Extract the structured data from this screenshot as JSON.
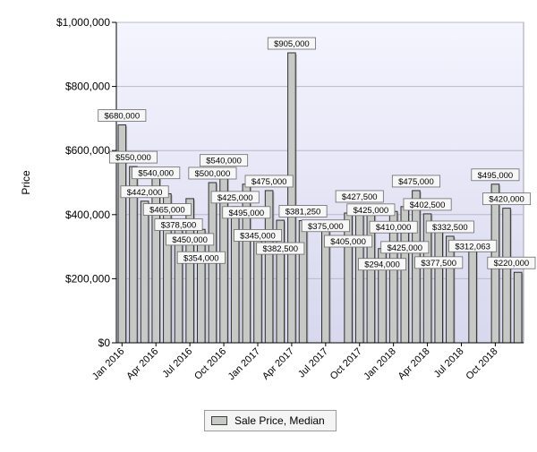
{
  "chart_data": {
    "type": "bar",
    "ylabel": "Price",
    "ylim": [
      0,
      1000000
    ],
    "y_ticks": [
      "$0",
      "$200,000",
      "$400,000",
      "$600,000",
      "$800,000",
      "$1,000,000"
    ],
    "y_tick_values": [
      0,
      200000,
      400000,
      600000,
      800000,
      1000000
    ],
    "x_tick_labels": [
      "Jan 2016",
      "Apr 2016",
      "Jul 2016",
      "Oct 2016",
      "Jan 2017",
      "Apr 2017",
      "Jul 2017",
      "Oct 2017",
      "Jan 2018",
      "Apr 2018",
      "Jul 2018",
      "Oct 2018"
    ],
    "categories": [
      "Jan 2016",
      "Feb 2016",
      "Mar 2016",
      "Apr 2016",
      "May 2016",
      "Jun 2016",
      "Jul 2016",
      "Aug 2016",
      "Sep 2016",
      "Oct 2016",
      "Nov 2016",
      "Dec 2016",
      "Jan 2017",
      "Feb 2017",
      "Mar 2017",
      "Apr 2017",
      "May 2017",
      "Jun 2017",
      "Jul 2017",
      "Aug 2017",
      "Sep 2017",
      "Oct 2017",
      "Nov 2017",
      "Dec 2017",
      "Jan 2018",
      "Feb 2018",
      "Mar 2018",
      "Apr 2018",
      "May 2018",
      "Jun 2018",
      "Jul 2018",
      "Aug 2018",
      "Sep 2018",
      "Oct 2018",
      "Nov 2018",
      "Dec 2018"
    ],
    "values": [
      680000,
      550000,
      442000,
      540000,
      465000,
      378500,
      450000,
      354000,
      500000,
      540000,
      425000,
      495000,
      345000,
      475000,
      382500,
      905000,
      381250,
      null,
      375000,
      null,
      405000,
      427500,
      425000,
      294000,
      410000,
      425000,
      475000,
      402500,
      377500,
      332500,
      null,
      312063,
      null,
      495000,
      420000,
      220000
    ],
    "data_labels": [
      "$680,000",
      "$550,000",
      "$442,000",
      "$540,000",
      "$465,000",
      "$378,500",
      "$450,000",
      "$354,000",
      "$500,000",
      "$540,000",
      "$425,000",
      "$495,000",
      "$345,000",
      "$475,000",
      "$382,500",
      "$905,000",
      "$381,250",
      "",
      "$375,000",
      "",
      "$405,000",
      "$427,500",
      "$425,000",
      "$294,000",
      "$410,000",
      "$425,000",
      "$475,000",
      "$402,500",
      "$377,500",
      "$332,500",
      "",
      "$312,063",
      "",
      "$495,000",
      "$420,000",
      "$220,000"
    ],
    "grid": true,
    "legend": {
      "position": "bottom",
      "label": "Sale Price, Median"
    },
    "colors": {
      "bar_fill": "#c6c9c6",
      "bar_stroke": "#2f2f2f",
      "plot_bg_top": "#f5f5ff",
      "plot_bg_bottom": "#d7d7ee",
      "grid": "#b9b9cc",
      "label_bg": "#f7f7f7",
      "label_border": "#6a6a6a"
    }
  }
}
